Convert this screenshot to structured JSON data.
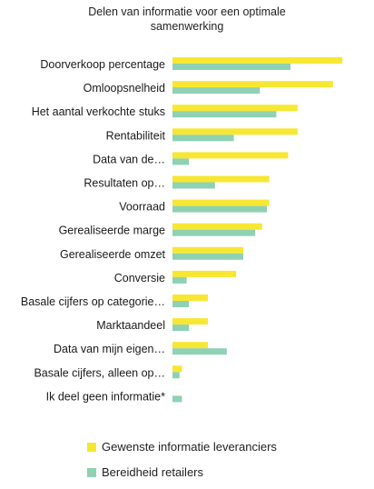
{
  "chart_data": {
    "type": "bar",
    "orientation": "horizontal",
    "title": "Delen van informatie voor een optimale samenwerking",
    "title_lines": [
      "Delen van informatie voor een optimale",
      "samenwerking"
    ],
    "categories": [
      "Doorverkoop percentage",
      "Omloopsnelheid",
      "Het aantal verkochte stuks",
      "Rentabiliteit",
      "Data van de…",
      "Resultaten op…",
      "Voorraad",
      "Gerealiseerde marge",
      "Gerealiseerde omzet",
      "Conversie",
      "Basale cijfers op categorie…",
      "Marktaandeel",
      "Data van mijn eigen…",
      "Basale cijfers, alleen op…",
      "Ik deel geen informatie*"
    ],
    "series": [
      {
        "name": "Gewenste informatie leveranciers",
        "color": "#f7e733",
        "values": [
          72,
          68,
          53,
          53,
          49,
          41,
          41,
          38,
          30,
          27,
          15,
          15,
          15,
          4,
          0
        ]
      },
      {
        "name": "Bereidheid retailers",
        "color": "#8fd1b3",
        "values": [
          50,
          37,
          44,
          26,
          7,
          18,
          40,
          35,
          30,
          6,
          7,
          7,
          23,
          3,
          4
        ]
      }
    ],
    "xlim": [
      0,
      80
    ],
    "grid": false,
    "legend_position": "bottom"
  }
}
